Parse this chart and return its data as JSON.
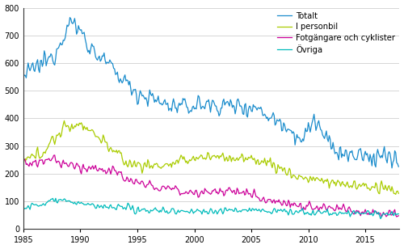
{
  "xlim": [
    1985,
    2018.0
  ],
  "ylim": [
    0,
    800
  ],
  "yticks": [
    0,
    100,
    200,
    300,
    400,
    500,
    600,
    700,
    800
  ],
  "xticks": [
    1985,
    1990,
    1995,
    2000,
    2005,
    2010,
    2015
  ],
  "colors": {
    "Totalt": "#1a8ccc",
    "I personbil": "#aacc00",
    "Fotgangare": "#cc0099",
    "Ovriga": "#00bbbb"
  },
  "legend_labels": [
    "Totalt",
    "I personbil",
    "Fotgängare och cyklister",
    "Övriga"
  ],
  "background_color": "#ffffff",
  "grid_color": "#d0d0d0"
}
